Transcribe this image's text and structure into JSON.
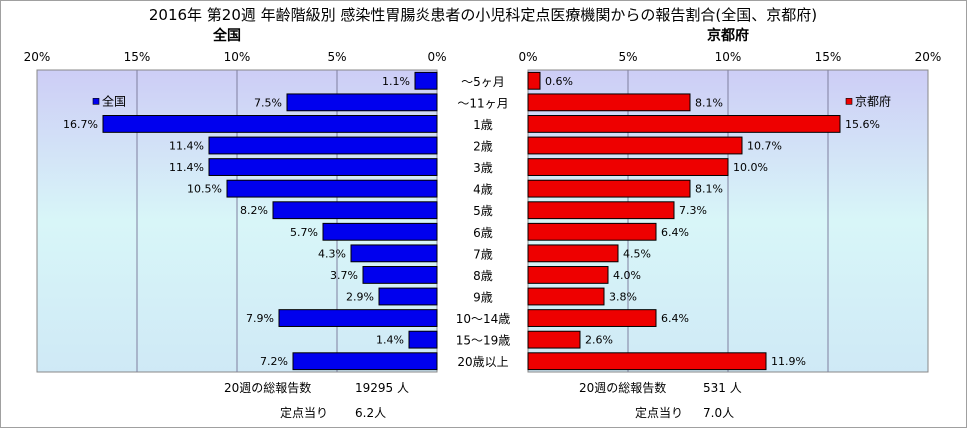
{
  "title": "2016年 第20週 年齢階級別 感染性胃腸炎患者の小児科定点医療機関からの報告割合(全国、京都府)",
  "colors": {
    "national_bar": "#0000ee",
    "kyoto_bar": "#ee0000"
  },
  "chart_data": [
    {
      "type": "bar",
      "orientation": "horizontal",
      "title": "全国",
      "legend_label": "全国",
      "legend_position": "top-left",
      "xlim": [
        0,
        20
      ],
      "x_direction": "reversed",
      "ticks": [
        "20%",
        "15%",
        "10%",
        "5%",
        "0%"
      ],
      "categories": [
        "～5ヶ月",
        "～11ヶ月",
        "1歳",
        "2歳",
        "3歳",
        "4歳",
        "5歳",
        "6歳",
        "7歳",
        "8歳",
        "9歳",
        "10～14歳",
        "15～19歳",
        "20歳以上"
      ],
      "values": [
        1.1,
        7.5,
        16.7,
        11.4,
        11.4,
        10.5,
        8.2,
        5.7,
        4.3,
        3.7,
        2.9,
        7.9,
        1.4,
        7.2
      ],
      "value_labels": [
        "1.1%",
        "7.5%",
        "16.7%",
        "11.4%",
        "11.4%",
        "10.5%",
        "8.2%",
        "5.7%",
        "4.3%",
        "3.7%",
        "2.9%",
        "7.9%",
        "1.4%",
        "7.2%"
      ],
      "grid": true,
      "summary": {
        "reports_label": "20週の総報告数",
        "reports_value": "19295 人",
        "per_site_label": "定点当り",
        "per_site_value": "6.2人"
      }
    },
    {
      "type": "bar",
      "orientation": "horizontal",
      "title": "京都府",
      "legend_label": "京都府",
      "legend_position": "top-right",
      "xlim": [
        0,
        20
      ],
      "ticks": [
        "0%",
        "5%",
        "10%",
        "15%",
        "20%"
      ],
      "categories": [
        "～5ヶ月",
        "～11ヶ月",
        "1歳",
        "2歳",
        "3歳",
        "4歳",
        "5歳",
        "6歳",
        "7歳",
        "8歳",
        "9歳",
        "10～14歳",
        "15～19歳",
        "20歳以上"
      ],
      "values": [
        0.6,
        8.1,
        15.6,
        10.7,
        10.0,
        8.1,
        7.3,
        6.4,
        4.5,
        4.0,
        3.8,
        6.4,
        2.6,
        11.9
      ],
      "value_labels": [
        "0.6%",
        "8.1%",
        "15.6%",
        "10.7%",
        "10.0%",
        "8.1%",
        "7.3%",
        "6.4%",
        "4.5%",
        "4.0%",
        "3.8%",
        "6.4%",
        "2.6%",
        "11.9%"
      ],
      "grid": true,
      "summary": {
        "reports_label": "20週の総報告数",
        "reports_value": "531 人",
        "per_site_label": "定点当り",
        "per_site_value": "7.0人"
      }
    }
  ]
}
